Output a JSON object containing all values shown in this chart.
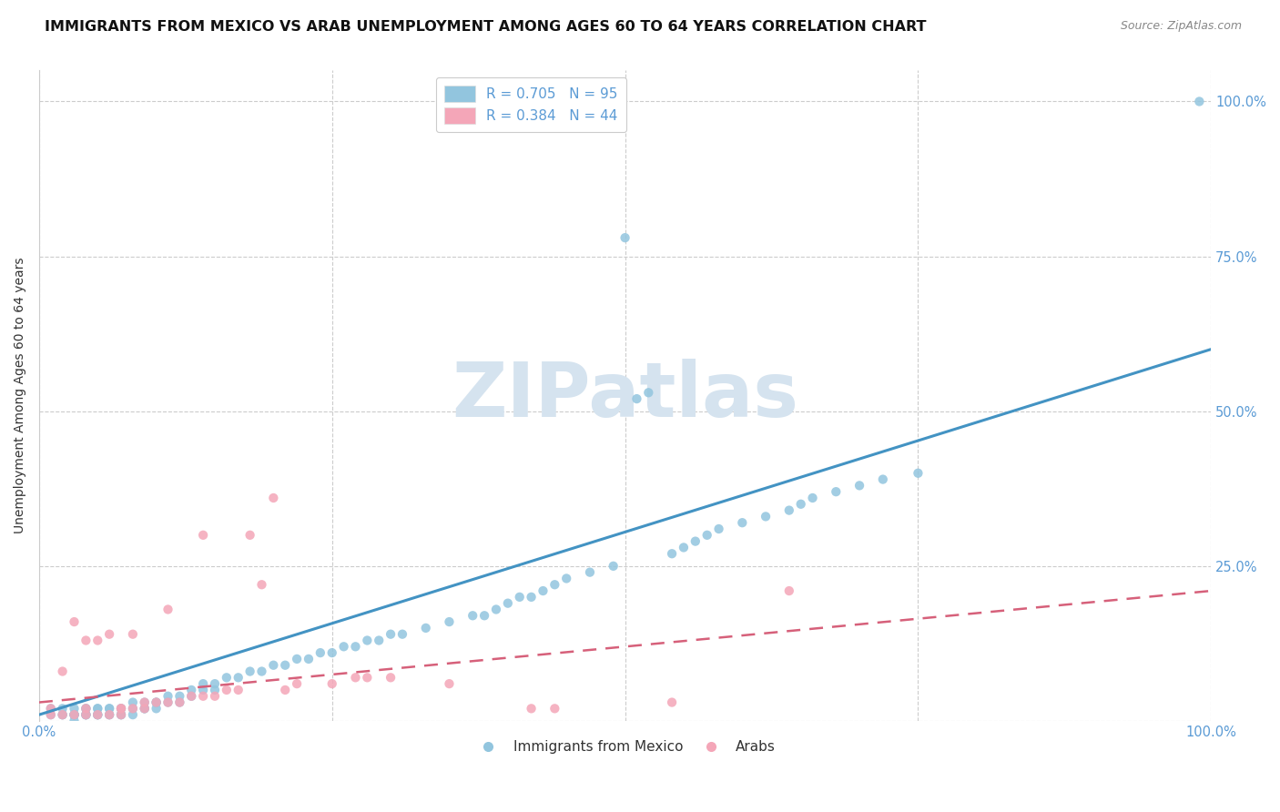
{
  "title": "IMMIGRANTS FROM MEXICO VS ARAB UNEMPLOYMENT AMONG AGES 60 TO 64 YEARS CORRELATION CHART",
  "source": "Source: ZipAtlas.com",
  "ylabel": "Unemployment Among Ages 60 to 64 years",
  "xlim": [
    0.0,
    1.0
  ],
  "ylim": [
    0.0,
    1.05
  ],
  "yticks": [
    0.0,
    0.25,
    0.5,
    0.75,
    1.0
  ],
  "ytick_labels": [
    "",
    "25.0%",
    "50.0%",
    "75.0%",
    "100.0%"
  ],
  "xticks": [
    0.0,
    0.25,
    0.5,
    0.75,
    1.0
  ],
  "xtick_labels": [
    "0.0%",
    "",
    "",
    "",
    "100.0%"
  ],
  "blue_color": "#92c5de",
  "pink_color": "#f4a6b8",
  "blue_line_color": "#4393c3",
  "pink_line_color": "#d6607a",
  "tick_label_color": "#5b9bd5",
  "legend_blue_label": "R = 0.705   N = 95",
  "legend_pink_label": "R = 0.384   N = 44",
  "watermark": "ZIPatlas",
  "blue_scatter_x": [
    0.01,
    0.01,
    0.02,
    0.02,
    0.02,
    0.03,
    0.03,
    0.03,
    0.03,
    0.03,
    0.04,
    0.04,
    0.04,
    0.04,
    0.04,
    0.05,
    0.05,
    0.05,
    0.05,
    0.05,
    0.06,
    0.06,
    0.06,
    0.06,
    0.07,
    0.07,
    0.07,
    0.07,
    0.08,
    0.08,
    0.08,
    0.09,
    0.09,
    0.09,
    0.1,
    0.1,
    0.1,
    0.11,
    0.11,
    0.12,
    0.12,
    0.13,
    0.13,
    0.14,
    0.14,
    0.15,
    0.15,
    0.16,
    0.17,
    0.18,
    0.19,
    0.2,
    0.21,
    0.22,
    0.23,
    0.24,
    0.25,
    0.26,
    0.27,
    0.28,
    0.29,
    0.3,
    0.31,
    0.33,
    0.35,
    0.37,
    0.38,
    0.39,
    0.4,
    0.41,
    0.42,
    0.43,
    0.44,
    0.45,
    0.47,
    0.49,
    0.5,
    0.51,
    0.52,
    0.54,
    0.55,
    0.56,
    0.57,
    0.58,
    0.6,
    0.62,
    0.64,
    0.65,
    0.66,
    0.68,
    0.7,
    0.72,
    0.75,
    0.99,
    0.03
  ],
  "blue_scatter_y": [
    0.01,
    0.02,
    0.01,
    0.02,
    0.01,
    0.01,
    0.02,
    0.01,
    0.01,
    0.01,
    0.01,
    0.02,
    0.01,
    0.01,
    0.02,
    0.01,
    0.02,
    0.01,
    0.02,
    0.01,
    0.01,
    0.02,
    0.01,
    0.02,
    0.01,
    0.02,
    0.02,
    0.01,
    0.02,
    0.03,
    0.01,
    0.02,
    0.03,
    0.02,
    0.03,
    0.02,
    0.03,
    0.03,
    0.04,
    0.03,
    0.04,
    0.04,
    0.05,
    0.05,
    0.06,
    0.05,
    0.06,
    0.07,
    0.07,
    0.08,
    0.08,
    0.09,
    0.09,
    0.1,
    0.1,
    0.11,
    0.11,
    0.12,
    0.12,
    0.13,
    0.13,
    0.14,
    0.14,
    0.15,
    0.16,
    0.17,
    0.17,
    0.18,
    0.19,
    0.2,
    0.2,
    0.21,
    0.22,
    0.23,
    0.24,
    0.25,
    0.78,
    0.52,
    0.53,
    0.27,
    0.28,
    0.29,
    0.3,
    0.31,
    0.32,
    0.33,
    0.34,
    0.35,
    0.36,
    0.37,
    0.38,
    0.39,
    0.4,
    1.0,
    0.0
  ],
  "pink_scatter_x": [
    0.01,
    0.01,
    0.02,
    0.02,
    0.03,
    0.03,
    0.04,
    0.04,
    0.04,
    0.05,
    0.05,
    0.06,
    0.06,
    0.07,
    0.07,
    0.07,
    0.08,
    0.08,
    0.09,
    0.09,
    0.1,
    0.11,
    0.11,
    0.12,
    0.13,
    0.14,
    0.14,
    0.15,
    0.16,
    0.17,
    0.18,
    0.19,
    0.2,
    0.21,
    0.22,
    0.25,
    0.27,
    0.28,
    0.3,
    0.35,
    0.42,
    0.44,
    0.54,
    0.64
  ],
  "pink_scatter_y": [
    0.01,
    0.02,
    0.01,
    0.08,
    0.01,
    0.16,
    0.01,
    0.02,
    0.13,
    0.01,
    0.13,
    0.01,
    0.14,
    0.01,
    0.02,
    0.02,
    0.02,
    0.14,
    0.02,
    0.03,
    0.03,
    0.03,
    0.18,
    0.03,
    0.04,
    0.04,
    0.3,
    0.04,
    0.05,
    0.05,
    0.3,
    0.22,
    0.36,
    0.05,
    0.06,
    0.06,
    0.07,
    0.07,
    0.07,
    0.06,
    0.02,
    0.02,
    0.03,
    0.21
  ],
  "blue_line_x": [
    0.0,
    1.0
  ],
  "blue_line_y": [
    0.01,
    0.6
  ],
  "pink_line_x": [
    0.0,
    1.0
  ],
  "pink_line_y": [
    0.03,
    0.21
  ],
  "background_color": "#ffffff",
  "grid_color": "#cccccc",
  "title_fontsize": 11.5,
  "axis_label_fontsize": 10,
  "tick_label_fontsize": 10.5,
  "legend_fontsize": 11,
  "watermark_color": "#d5e3ef",
  "watermark_fontsize": 60
}
